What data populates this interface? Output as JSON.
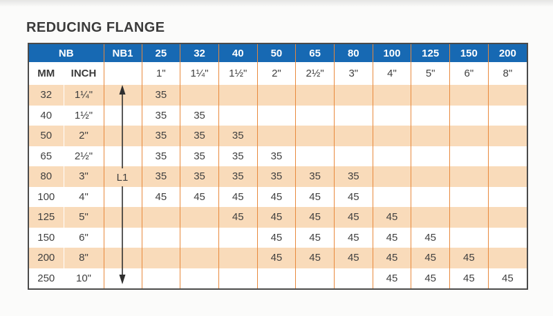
{
  "title": "REDUCING FLANGE",
  "table": {
    "header": {
      "nb": "NB",
      "nb1": "NB1",
      "mm": "MM",
      "inch": "INCH"
    },
    "arrow_label": "L1",
    "columns": [
      {
        "nb": "25",
        "inch": "1\""
      },
      {
        "nb": "32",
        "inch": "1¼\""
      },
      {
        "nb": "40",
        "inch": "1½\""
      },
      {
        "nb": "50",
        "inch": "2\""
      },
      {
        "nb": "65",
        "inch": "2½\""
      },
      {
        "nb": "80",
        "inch": "3\""
      },
      {
        "nb": "100",
        "inch": "4\""
      },
      {
        "nb": "125",
        "inch": "5\""
      },
      {
        "nb": "150",
        "inch": "6\""
      },
      {
        "nb": "200",
        "inch": "8\""
      }
    ],
    "rows": [
      {
        "mm": "32",
        "inch": "1¼\"",
        "values": [
          "35",
          "",
          "",
          "",
          "",
          "",
          "",
          "",
          "",
          ""
        ]
      },
      {
        "mm": "40",
        "inch": "1½\"",
        "values": [
          "35",
          "35",
          "",
          "",
          "",
          "",
          "",
          "",
          "",
          ""
        ]
      },
      {
        "mm": "50",
        "inch": "2\"",
        "values": [
          "35",
          "35",
          "35",
          "",
          "",
          "",
          "",
          "",
          "",
          ""
        ]
      },
      {
        "mm": "65",
        "inch": "2½\"",
        "values": [
          "35",
          "35",
          "35",
          "35",
          "",
          "",
          "",
          "",
          "",
          ""
        ]
      },
      {
        "mm": "80",
        "inch": "3\"",
        "values": [
          "35",
          "35",
          "35",
          "35",
          "35",
          "35",
          "",
          "",
          "",
          ""
        ]
      },
      {
        "mm": "100",
        "inch": "4\"",
        "values": [
          "45",
          "45",
          "45",
          "45",
          "45",
          "45",
          "",
          "",
          "",
          ""
        ]
      },
      {
        "mm": "125",
        "inch": "5\"",
        "values": [
          "",
          "",
          "45",
          "45",
          "45",
          "45",
          "45",
          "",
          "",
          ""
        ]
      },
      {
        "mm": "150",
        "inch": "6\"",
        "values": [
          "",
          "",
          "",
          "45",
          "45",
          "45",
          "45",
          "45",
          "",
          ""
        ]
      },
      {
        "mm": "200",
        "inch": "8\"",
        "values": [
          "",
          "",
          "",
          "45",
          "45",
          "45",
          "45",
          "45",
          "45",
          ""
        ]
      },
      {
        "mm": "250",
        "inch": "10\"",
        "values": [
          "",
          "",
          "",
          "",
          "",
          "",
          "45",
          "45",
          "45",
          "45"
        ]
      }
    ]
  },
  "colors": {
    "header_bg": "#1769B3",
    "band_bg": "#F9DBBA",
    "grid_line": "#E8883B",
    "outer_border": "#4A4A4A",
    "text": "#3F3F3F"
  }
}
